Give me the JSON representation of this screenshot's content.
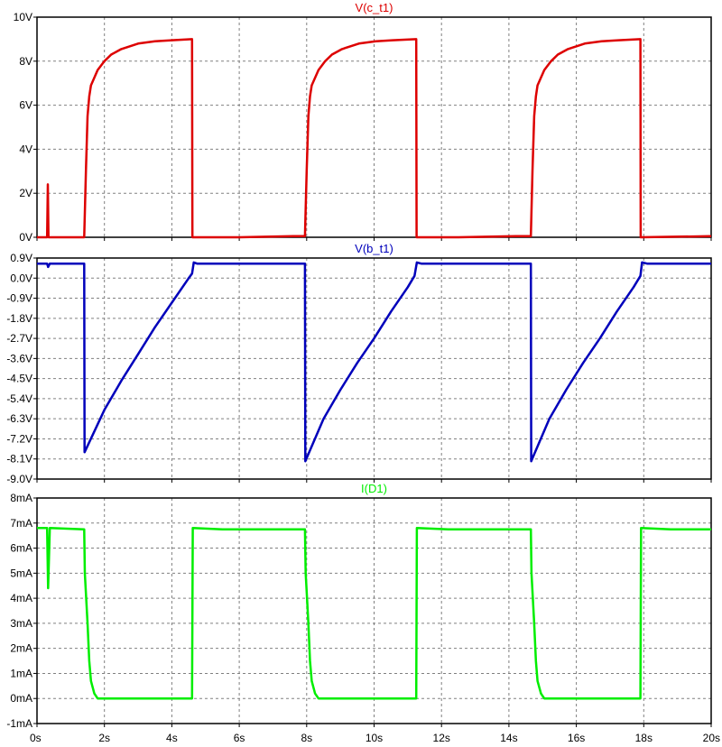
{
  "chart_data": {
    "type": "line",
    "x": {
      "ticks": [
        0,
        2,
        4,
        6,
        8,
        10,
        12,
        14,
        16,
        18,
        20
      ],
      "tick_labels": [
        "0s",
        "2s",
        "4s",
        "6s",
        "8s",
        "10s",
        "12s",
        "14s",
        "16s",
        "18s",
        "20s"
      ],
      "range": [
        0,
        20
      ]
    },
    "grid": true,
    "panels": [
      {
        "title": "V(c_t1)",
        "color": "#dd0000",
        "yrange": [
          0,
          10
        ],
        "yticks": [
          0,
          2,
          4,
          6,
          8,
          10
        ],
        "ytick_labels": [
          "0V",
          "2V",
          "4V",
          "6V",
          "8V",
          "10V"
        ],
        "points": [
          [
            0,
            0
          ],
          [
            0.3,
            0
          ],
          [
            0.32,
            2.4
          ],
          [
            0.34,
            0
          ],
          [
            1.4,
            0
          ],
          [
            1.45,
            3
          ],
          [
            1.5,
            5.5
          ],
          [
            1.55,
            6.4
          ],
          [
            1.6,
            6.9
          ],
          [
            1.8,
            7.6
          ],
          [
            2.0,
            8.0
          ],
          [
            2.2,
            8.3
          ],
          [
            2.5,
            8.55
          ],
          [
            3.0,
            8.8
          ],
          [
            3.5,
            8.9
          ],
          [
            4.0,
            8.95
          ],
          [
            4.6,
            9.0
          ],
          [
            4.61,
            0
          ],
          [
            6.0,
            0
          ],
          [
            7.6,
            0.05
          ],
          [
            7.95,
            0.05
          ],
          [
            8.0,
            3
          ],
          [
            8.05,
            5.5
          ],
          [
            8.1,
            6.4
          ],
          [
            8.15,
            6.9
          ],
          [
            8.35,
            7.6
          ],
          [
            8.55,
            8.0
          ],
          [
            8.75,
            8.3
          ],
          [
            9.05,
            8.55
          ],
          [
            9.55,
            8.8
          ],
          [
            10.05,
            8.9
          ],
          [
            10.55,
            8.95
          ],
          [
            11.25,
            9.0
          ],
          [
            11.26,
            0
          ],
          [
            12.5,
            0
          ],
          [
            14.2,
            0.05
          ],
          [
            14.65,
            0.05
          ],
          [
            14.7,
            3
          ],
          [
            14.75,
            5.5
          ],
          [
            14.8,
            6.4
          ],
          [
            14.85,
            6.9
          ],
          [
            15.05,
            7.6
          ],
          [
            15.25,
            8.0
          ],
          [
            15.45,
            8.3
          ],
          [
            15.75,
            8.55
          ],
          [
            16.25,
            8.8
          ],
          [
            16.75,
            8.9
          ],
          [
            17.25,
            8.95
          ],
          [
            17.9,
            9.0
          ],
          [
            17.91,
            0
          ],
          [
            20,
            0.05
          ]
        ]
      },
      {
        "title": "V(b_t1)",
        "color": "#0000bb",
        "yrange": [
          -9.0,
          0.9
        ],
        "yticks": [
          -9.0,
          -8.1,
          -7.2,
          -6.3,
          -5.4,
          -4.5,
          -3.6,
          -2.7,
          -1.8,
          -0.9,
          0.0,
          0.9
        ],
        "ytick_labels": [
          "-9.0V",
          "-8.1V",
          "-7.2V",
          "-6.3V",
          "-5.4V",
          "-4.5V",
          "-3.6V",
          "-2.7V",
          "-1.8V",
          "-0.9V",
          "0.0V",
          "0.9V"
        ],
        "points": [
          [
            0,
            0.65
          ],
          [
            0.3,
            0.65
          ],
          [
            0.33,
            0.5
          ],
          [
            0.38,
            0.65
          ],
          [
            1.4,
            0.65
          ],
          [
            1.41,
            -7.8
          ],
          [
            2.0,
            -5.9
          ],
          [
            2.5,
            -4.6
          ],
          [
            3.0,
            -3.4
          ],
          [
            3.5,
            -2.2
          ],
          [
            4.0,
            -1.1
          ],
          [
            4.5,
            0.0
          ],
          [
            4.6,
            0.2
          ],
          [
            4.65,
            0.7
          ],
          [
            4.75,
            0.65
          ],
          [
            7.95,
            0.65
          ],
          [
            7.96,
            -8.2
          ],
          [
            8.5,
            -6.3
          ],
          [
            9.0,
            -5.0
          ],
          [
            9.5,
            -3.8
          ],
          [
            10.0,
            -2.7
          ],
          [
            10.5,
            -1.5
          ],
          [
            11.0,
            -0.4
          ],
          [
            11.2,
            0.1
          ],
          [
            11.27,
            0.7
          ],
          [
            11.4,
            0.65
          ],
          [
            14.65,
            0.65
          ],
          [
            14.66,
            -8.2
          ],
          [
            15.2,
            -6.3
          ],
          [
            15.7,
            -5.0
          ],
          [
            16.2,
            -3.8
          ],
          [
            16.7,
            -2.7
          ],
          [
            17.2,
            -1.5
          ],
          [
            17.7,
            -0.4
          ],
          [
            17.9,
            0.1
          ],
          [
            17.95,
            0.7
          ],
          [
            18.1,
            0.65
          ],
          [
            20,
            0.65
          ]
        ]
      },
      {
        "title": "I(D1)",
        "color": "#00ee00",
        "yrange": [
          -1,
          8
        ],
        "yticks": [
          -1,
          0,
          1,
          2,
          3,
          4,
          5,
          6,
          7,
          8
        ],
        "ytick_labels": [
          "-1mA",
          "0mA",
          "1mA",
          "2mA",
          "3mA",
          "4mA",
          "5mA",
          "6mA",
          "7mA",
          "8mA"
        ],
        "points": [
          [
            0,
            6.8
          ],
          [
            0.3,
            6.8
          ],
          [
            0.33,
            4.4
          ],
          [
            0.38,
            6.8
          ],
          [
            1.4,
            6.75
          ],
          [
            1.42,
            5.0
          ],
          [
            1.5,
            3.0
          ],
          [
            1.55,
            1.5
          ],
          [
            1.6,
            0.7
          ],
          [
            1.7,
            0.2
          ],
          [
            1.8,
            0.0
          ],
          [
            4.6,
            0.0
          ],
          [
            4.62,
            6.8
          ],
          [
            5.5,
            6.75
          ],
          [
            7.95,
            6.75
          ],
          [
            7.97,
            5.0
          ],
          [
            8.05,
            3.0
          ],
          [
            8.1,
            1.5
          ],
          [
            8.15,
            0.7
          ],
          [
            8.25,
            0.2
          ],
          [
            8.35,
            0.0
          ],
          [
            11.25,
            0.0
          ],
          [
            11.27,
            6.8
          ],
          [
            12.2,
            6.75
          ],
          [
            14.65,
            6.75
          ],
          [
            14.67,
            5.0
          ],
          [
            14.75,
            3.0
          ],
          [
            14.8,
            1.5
          ],
          [
            14.85,
            0.7
          ],
          [
            14.95,
            0.2
          ],
          [
            15.05,
            0.0
          ],
          [
            17.9,
            0.0
          ],
          [
            17.92,
            6.8
          ],
          [
            18.8,
            6.75
          ],
          [
            20,
            6.75
          ]
        ]
      }
    ]
  }
}
